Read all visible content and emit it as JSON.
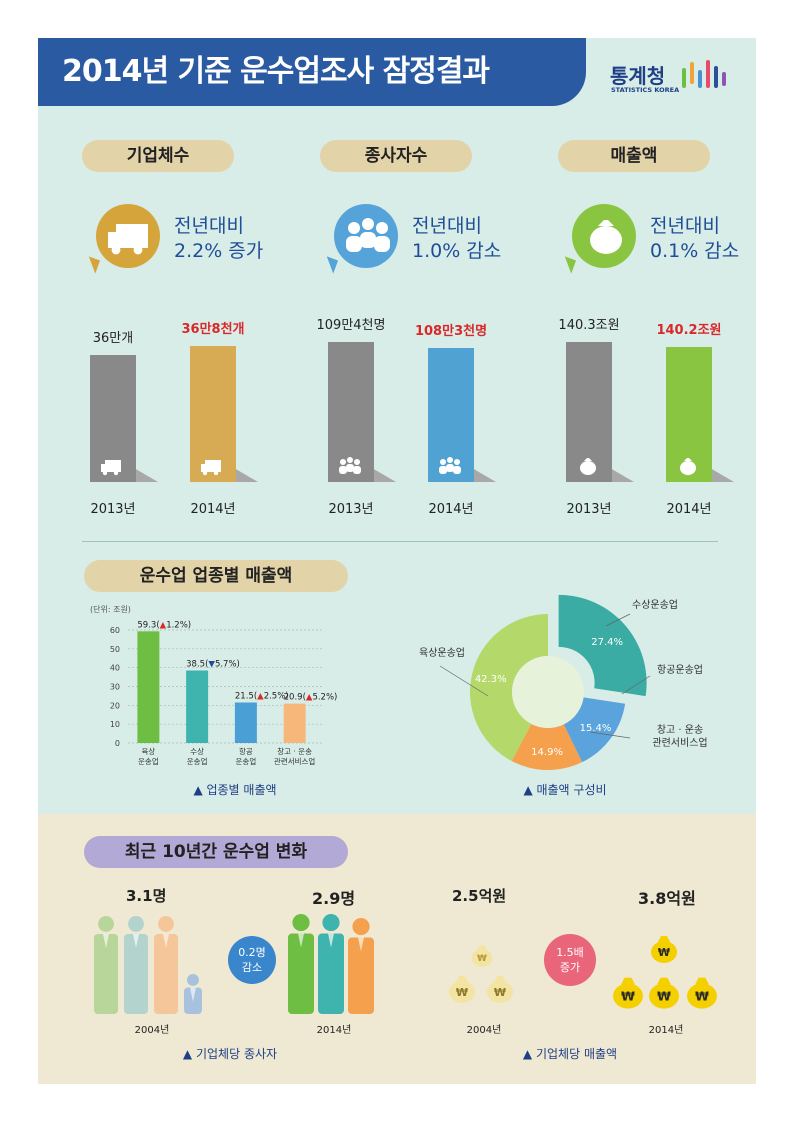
{
  "header": {
    "title": "2014년 기준 운수업조사 잠정결과",
    "logo_name": "통계청",
    "logo_sub": "STATISTICS KOREA"
  },
  "summary": [
    {
      "section": "기업체수",
      "icon": "truck-icon",
      "line1": "전년대비",
      "line2": "2.2% 증가",
      "v2013": "36만개",
      "v2014": "36만8천개",
      "y2013": "2013년",
      "y2014": "2014년",
      "value_2013": 36,
      "value_2014": 36.8,
      "unit": "만개"
    },
    {
      "section": "종사자수",
      "icon": "people-icon",
      "line1": "전년대비",
      "line2": "1.0% 감소",
      "v2013": "109만4천명",
      "v2014": "108만3천명",
      "y2013": "2013년",
      "y2014": "2014년",
      "value_2013": 109.4,
      "value_2014": 108.3,
      "unit": "만명"
    },
    {
      "section": "매출액",
      "icon": "money-bag-icon",
      "line1": "전년대비",
      "line2": "0.1% 감소",
      "v2013": "140.3조원",
      "v2014": "140.2조원",
      "y2013": "2013년",
      "y2014": "2014년",
      "value_2013": 140.3,
      "value_2014": 140.2,
      "unit": "조원"
    }
  ],
  "industry": {
    "section": "운수업 업종별 매출액",
    "bar_caption": "▲ 업종별 매출액",
    "pie_caption": "▲ 매출액 구성비"
  },
  "chart_data": [
    {
      "type": "bar",
      "unit_label": "(단위: 조원)",
      "ylim": [
        0,
        60
      ],
      "yticks": [
        0,
        10,
        20,
        30,
        40,
        50,
        60
      ],
      "categories": [
        "육상 운송업",
        "수상 운송업",
        "항공 운송업",
        "창고 · 운송 관련서비스업"
      ],
      "values": [
        59.3,
        38.5,
        21.5,
        20.9
      ],
      "data_labels": [
        {
          "value": "59.3",
          "dir": "▲",
          "pct": "1.2%"
        },
        {
          "value": "38.5",
          "dir": "▼",
          "pct": "5.7%"
        },
        {
          "value": "21.5",
          "dir": "▲",
          "pct": "2.5%"
        },
        {
          "value": "20.9",
          "dir": "▲",
          "pct": "5.2%"
        }
      ],
      "colors": [
        "#6fbe44",
        "#3fb3ad",
        "#4a9fd5",
        "#f7b77a"
      ]
    },
    {
      "type": "pie",
      "slices": [
        {
          "label": "수상운송업",
          "value": 27.4,
          "text": "27.4%",
          "color": "#3aaca4"
        },
        {
          "label": "항공운송업",
          "value": 15.4,
          "text": "15.4%",
          "color": "#5aa3dd"
        },
        {
          "label": "창고 · 운송 관련서비스업",
          "value": 14.9,
          "text": "14.9%",
          "color": "#f5a04d"
        },
        {
          "label": "육상운송업",
          "value": 42.3,
          "text": "42.3%",
          "color": "#b5d86b"
        }
      ]
    }
  ],
  "trend": {
    "section": "최근 10년간 운수업 변화",
    "workers": {
      "v2004": "3.1명",
      "v2014": "2.9명",
      "y2004": "2004년",
      "y2014": "2014년",
      "bubble": "0.2명\n감소",
      "bubble1": "0.2명",
      "bubble2": "감소",
      "caption": "▲ 기업체당 종사자",
      "value_2004": 3.1,
      "value_2014": 2.9
    },
    "sales": {
      "v2004": "2.5억원",
      "v2014": "3.8억원",
      "y2004": "2004년",
      "y2014": "2014년",
      "bubble1": "1.5배",
      "bubble2": "증가",
      "caption": "▲ 기업체당 매출액",
      "value_2004": 2.5,
      "value_2014": 3.8
    }
  }
}
